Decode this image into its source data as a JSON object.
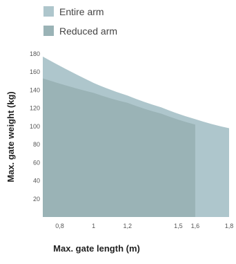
{
  "chart_data": {
    "type": "area",
    "xlabel": "Max. gate length (m)",
    "ylabel": "Max. gate weight (kg)",
    "xlim": [
      0.7,
      1.8
    ],
    "ylim": [
      0,
      180
    ],
    "x_ticks": [
      0.8,
      1,
      1.2,
      1.5,
      1.6,
      1.8
    ],
    "x_tick_labels": [
      "0,8",
      "1",
      "1,2",
      "1,5",
      "1,6",
      "1,8"
    ],
    "y_ticks": [
      20,
      40,
      60,
      80,
      100,
      120,
      140,
      160,
      180
    ],
    "series": [
      {
        "name": "Entire arm",
        "color": "#aec6cc",
        "x": [
          0.7,
          1.0,
          1.2,
          1.4,
          1.6,
          1.8
        ],
        "y": [
          177,
          148,
          134,
          121,
          108,
          98
        ]
      },
      {
        "name": "Reduced arm",
        "color": "#9ab3b6",
        "x": [
          0.7,
          1.0,
          1.2,
          1.4,
          1.6
        ],
        "y": [
          153,
          137,
          126,
          114,
          102
        ]
      }
    ],
    "legend": "top-left"
  }
}
